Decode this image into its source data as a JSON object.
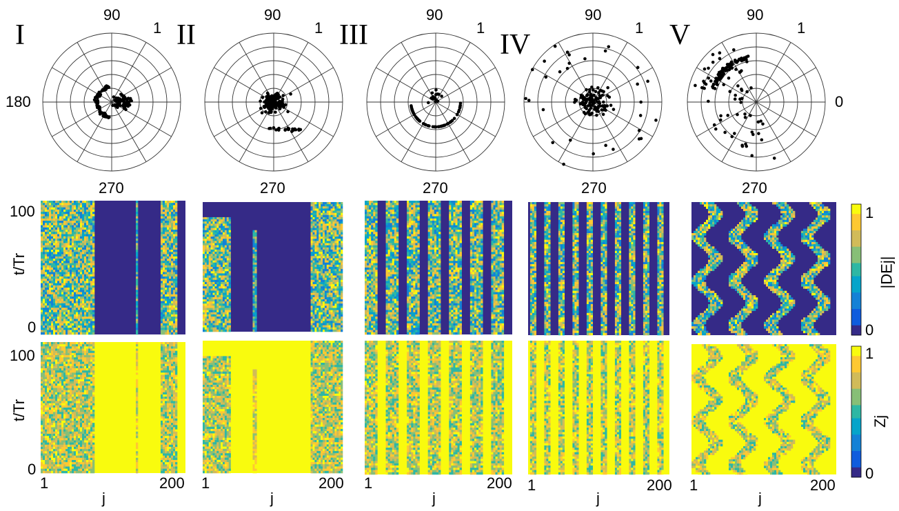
{
  "chart_data": [
    {
      "type": "scatter",
      "panel": "I",
      "projection": "polar",
      "title": "I",
      "angle_labels": [
        "90",
        "1",
        "180",
        "270"
      ],
      "description_points": "points clustered near center, arc on left side"
    },
    {
      "type": "scatter",
      "panel": "II",
      "projection": "polar",
      "title": "II",
      "angle_labels": [
        "90",
        "1",
        "270"
      ]
    },
    {
      "type": "scatter",
      "panel": "III",
      "projection": "polar",
      "title": "III",
      "angle_labels": [
        "90",
        "1",
        "270"
      ]
    },
    {
      "type": "scatter",
      "panel": "IV",
      "projection": "polar",
      "title": "IV",
      "angle_labels": [
        "90",
        "1",
        "270"
      ]
    },
    {
      "type": "scatter",
      "panel": "V",
      "projection": "polar",
      "title": "V",
      "angle_labels": [
        "90",
        "1",
        "0",
        "270"
      ]
    },
    {
      "type": "heatmap",
      "row": "DE",
      "ylabel": "t/Tr",
      "yticks": [
        "100",
        "0"
      ],
      "colorbar_label": "|DEj|",
      "colorbar_ticks": [
        "1",
        "0"
      ],
      "ylim": [
        0,
        100
      ]
    },
    {
      "type": "heatmap",
      "row": "Z",
      "ylabel": "t/Tr",
      "xlabel": "j",
      "yticks": [
        "100",
        "0"
      ],
      "xticks": [
        "1",
        "200"
      ],
      "colorbar_label": "Zj",
      "colorbar_ticks": [
        "1",
        "0"
      ],
      "xlim": [
        1,
        200
      ],
      "ylim": [
        0,
        100
      ]
    }
  ],
  "labels": {
    "romans": [
      "I",
      "II",
      "III",
      "IV",
      "V"
    ],
    "deg90": "90",
    "deg1": "1",
    "deg180": "180",
    "deg0": "0",
    "deg270": "270",
    "ylabel": "t/Tr",
    "xlabel": "j",
    "y100": "100",
    "y0": "0",
    "x1": "1",
    "x200": "200",
    "cbar1_label": "|DEj|",
    "cbar2_label": "Zj",
    "cbar_top": "1",
    "cbar_bottom": "0"
  },
  "colors": {
    "navy": "#352a87",
    "yellow": "#f9fb0e",
    "teal": "#21a5a2",
    "green": "#8bbf3b",
    "orange": "#f0b83a"
  }
}
